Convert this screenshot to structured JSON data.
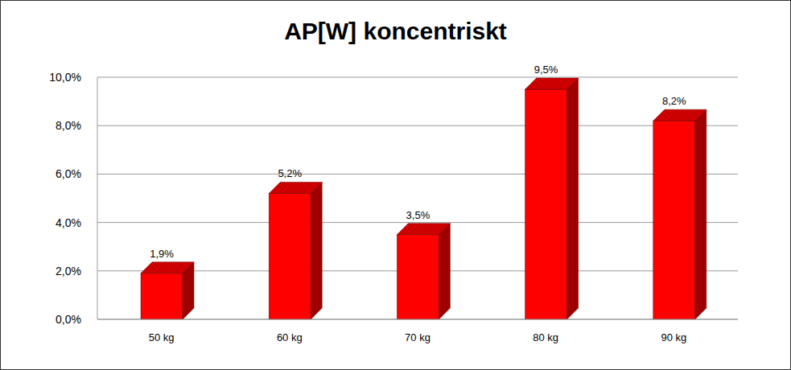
{
  "chart_data": {
    "type": "bar",
    "title": "AP[W] koncentriskt",
    "categories": [
      "50 kg",
      "60 kg",
      "70 kg",
      "80 kg",
      "90 kg"
    ],
    "values": [
      1.9,
      5.2,
      3.5,
      9.5,
      8.2
    ],
    "value_labels": [
      "1,9%",
      "5,2%",
      "3,5%",
      "9,5%",
      "8,2%"
    ],
    "color": "#ff0000",
    "ylim": [
      0,
      10
    ],
    "yticks": [
      {
        "value": 0,
        "label": "0,0%"
      },
      {
        "value": 2,
        "label": "2,0%"
      },
      {
        "value": 4,
        "label": "4,0%"
      },
      {
        "value": 6,
        "label": "6,0%"
      },
      {
        "value": 8,
        "label": "8,0%"
      },
      {
        "value": 10,
        "label": "10,0%"
      }
    ],
    "grid": true,
    "data_labels": true
  }
}
